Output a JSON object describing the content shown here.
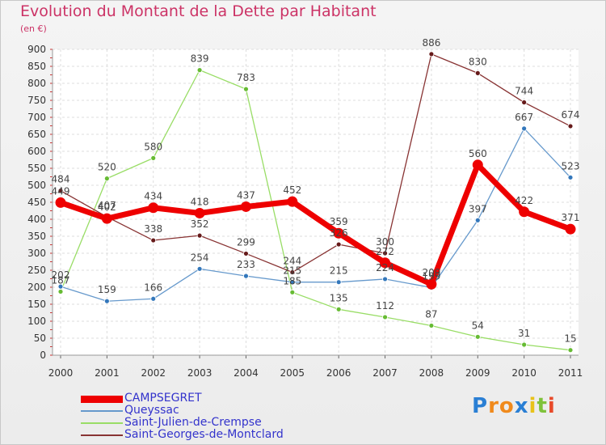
{
  "title": "Evolution du Montant de la Dette par Habitant",
  "subtitle": "(en €)",
  "logo": {
    "letters": [
      "P",
      "r",
      "o",
      "x",
      "i",
      "t",
      "i"
    ],
    "colors": [
      "#2a7fd4",
      "#f08a1c",
      "#f08a1c",
      "#2a7fd4",
      "#e8c21a",
      "#7ec23a",
      "#e84a2a"
    ]
  },
  "chart_data": {
    "type": "line",
    "x": [
      "2000",
      "2001",
      "2002",
      "2003",
      "2004",
      "2005",
      "2006",
      "2007",
      "2008",
      "2009",
      "2010",
      "2011"
    ],
    "yticks": [
      0,
      50,
      100,
      150,
      200,
      250,
      300,
      350,
      400,
      450,
      500,
      550,
      600,
      650,
      700,
      750,
      800,
      850,
      900
    ],
    "ylim": [
      0,
      900
    ],
    "grid": true,
    "legend_position": "bottom-left",
    "series": [
      {
        "name": "Saint-Julien-de-Crempse",
        "color": "#99dd66",
        "marker": "#66bb33",
        "width": 1.3,
        "r": 3,
        "values": [
          187,
          520,
          580,
          839,
          783,
          185,
          135,
          112,
          87,
          54,
          31,
          15
        ],
        "labels": [
          "187",
          "520",
          "580",
          "839",
          "783",
          "185",
          "135",
          "112",
          "87",
          "54",
          "31",
          "15"
        ]
      },
      {
        "name": "Queyssac",
        "color": "#6699cc",
        "marker": "#3377bb",
        "width": 1.3,
        "r": 3,
        "values": [
          202,
          159,
          166,
          254,
          233,
          215,
          215,
          224,
          199,
          397,
          667,
          523
        ],
        "labels": [
          "202",
          "159",
          "166",
          "254",
          "233",
          "215",
          "215",
          "224",
          "199",
          "397",
          "667",
          "523"
        ]
      },
      {
        "name": "Saint-Georges-de-Montclard",
        "color": "#883333",
        "marker": "#661a1a",
        "width": 1.3,
        "r": 3,
        "values": [
          484,
          407,
          338,
          352,
          299,
          244,
          326,
          300,
          886,
          830,
          744,
          674
        ],
        "labels": [
          "484",
          "407",
          "338",
          "352",
          "299",
          "244",
          "326",
          "300",
          "886",
          "830",
          "744",
          "674"
        ]
      },
      {
        "name": "CAMPSEGRET",
        "color": "#ee0000",
        "marker": "#ee0000",
        "width": 7,
        "r": 6.5,
        "values": [
          449,
          402,
          434,
          418,
          437,
          452,
          359,
          272,
          209,
          560,
          422,
          371
        ],
        "labels": [
          "449",
          "402",
          "434",
          "418",
          "437",
          "452",
          "359",
          "272",
          "209",
          "560",
          "422",
          "371"
        ]
      }
    ],
    "legend": [
      {
        "name": "CAMPSEGRET",
        "color": "#ee0000",
        "thickness": 9
      },
      {
        "name": "Queyssac",
        "color": "#6699cc",
        "thickness": 2
      },
      {
        "name": "Saint-Julien-de-Crempse",
        "color": "#99dd66",
        "thickness": 2
      },
      {
        "name": "Saint-Georges-de-Montclard",
        "color": "#883333",
        "thickness": 2
      }
    ]
  }
}
